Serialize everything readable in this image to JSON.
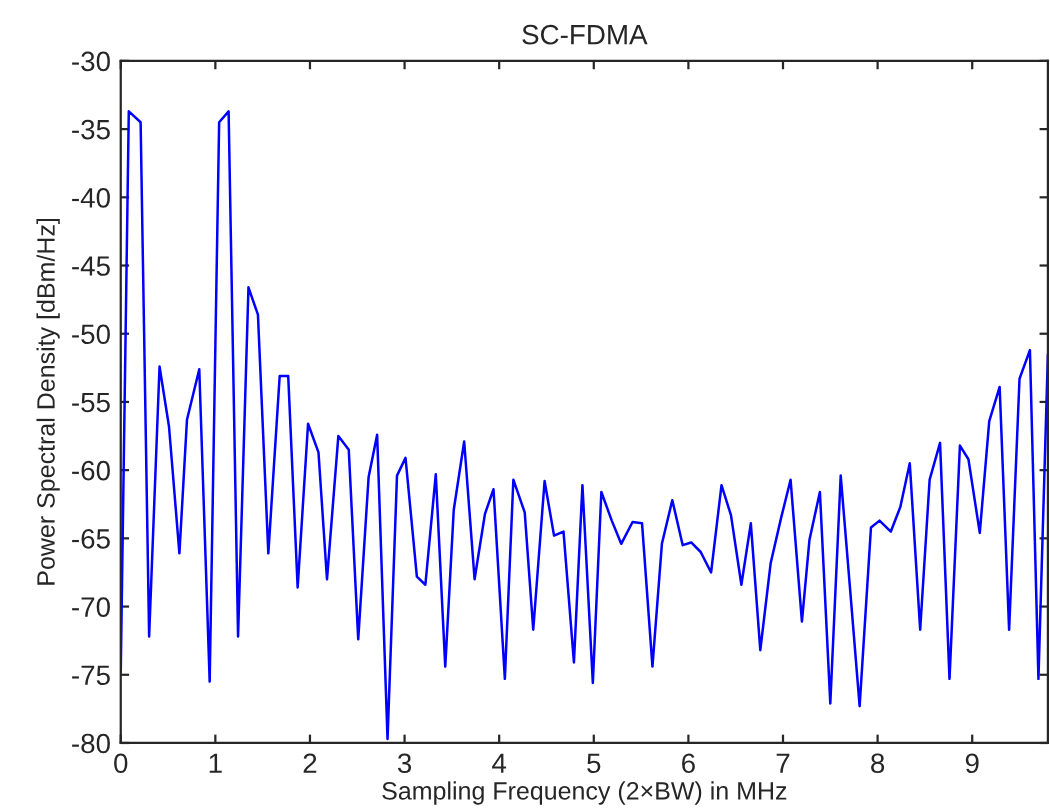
{
  "chart_data": {
    "type": "line",
    "title": "SC-FDMA",
    "xlabel": "Sampling Frequency (2×BW) in MHz",
    "ylabel": "Power Spectral Density [dBm/Hz]",
    "xlim": [
      0,
      9.8
    ],
    "xticks": [
      0,
      1,
      2,
      3,
      4,
      5,
      6,
      7,
      8,
      9
    ],
    "ylim": [
      -80,
      -30
    ],
    "yticks": [
      -80,
      -75,
      -70,
      -65,
      -60,
      -55,
      -50,
      -45,
      -40,
      -35,
      -30
    ],
    "grid": false,
    "marker": "none",
    "line_style": "solid",
    "series": [
      {
        "color": "#0000ff",
        "x": [
          0,
          0.085,
          0.21,
          0.3,
          0.41,
          0.51,
          0.62,
          0.7,
          0.83,
          0.94,
          1.04,
          1.14,
          1.24,
          1.35,
          1.45,
          1.56,
          1.68,
          1.77,
          1.87,
          1.98,
          2.09,
          2.18,
          2.3,
          2.41,
          2.51,
          2.62,
          2.71,
          2.82,
          2.92,
          3.01,
          3.13,
          3.22,
          3.33,
          3.43,
          3.52,
          3.63,
          3.74,
          3.85,
          3.94,
          4.06,
          4.15,
          4.27,
          4.36,
          4.48,
          4.58,
          4.68,
          4.79,
          4.88,
          4.99,
          5.08,
          5.19,
          5.29,
          5.41,
          5.51,
          5.62,
          5.72,
          5.83,
          5.94,
          6.03,
          6.13,
          6.24,
          6.35,
          6.45,
          6.56,
          6.66,
          6.76,
          6.87,
          6.98,
          7.08,
          7.2,
          7.28,
          7.39,
          7.5,
          7.61,
          7.71,
          7.81,
          7.93,
          8.02,
          8.14,
          8.24,
          8.34,
          8.45,
          8.55,
          8.66,
          8.76,
          8.87,
          8.96,
          9.08,
          9.18,
          9.29,
          9.39,
          9.5,
          9.61,
          9.7,
          9.8
        ],
        "values": [
          -74.8,
          -33.7,
          -34.5,
          -72.2,
          -52.4,
          -56.8,
          -66.1,
          -56.3,
          -52.6,
          -75.5,
          -34.5,
          -33.7,
          -72.2,
          -46.6,
          -48.6,
          -66.1,
          -53.1,
          -53.1,
          -68.6,
          -56.6,
          -58.7,
          -68.0,
          -57.5,
          -58.5,
          -72.4,
          -60.5,
          -57.4,
          -79.7,
          -60.4,
          -59.1,
          -67.8,
          -68.4,
          -60.3,
          -74.4,
          -62.9,
          -57.9,
          -68.0,
          -63.2,
          -61.4,
          -75.3,
          -60.7,
          -63.1,
          -71.7,
          -60.8,
          -64.8,
          -64.5,
          -74.1,
          -61.1,
          -75.6,
          -61.6,
          -63.7,
          -65.4,
          -63.8,
          -63.9,
          -74.4,
          -65.4,
          -62.2,
          -65.5,
          -65.3,
          -66.0,
          -67.5,
          -61.1,
          -63.3,
          -68.4,
          -63.9,
          -73.2,
          -66.8,
          -63.5,
          -60.7,
          -71.1,
          -65.1,
          -61.6,
          -77.1,
          -60.4,
          -68.8,
          -77.3,
          -64.2,
          -63.7,
          -64.5,
          -62.7,
          -59.5,
          -71.7,
          -60.7,
          -58.0,
          -75.3,
          -58.2,
          -59.2,
          -64.6,
          -56.4,
          -53.9,
          -71.7,
          -53.3,
          -51.2,
          -75.3,
          -51.5
        ]
      }
    ]
  }
}
